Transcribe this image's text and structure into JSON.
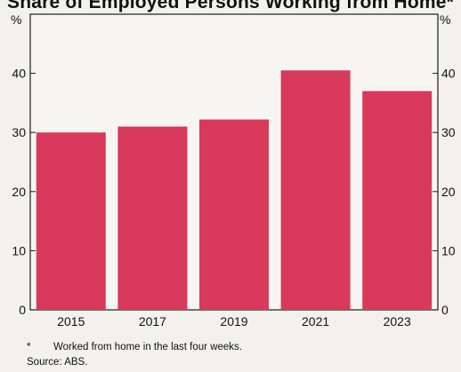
{
  "chart_data": {
    "type": "bar",
    "title": "Share of Employed Persons Working from Home*",
    "categories": [
      "2015",
      "2017",
      "2019",
      "2021",
      "2023"
    ],
    "values": [
      30,
      31,
      32.2,
      40.5,
      37
    ],
    "ylabel_left": "%",
    "ylabel_right": "%",
    "ylim": [
      0,
      50
    ],
    "yticks": [
      "0",
      "10",
      "20",
      "30",
      "40"
    ],
    "grid": false,
    "bar_color": "#d9395a"
  },
  "footnote": {
    "marker": "*",
    "text": "Worked from home in the last four weeks."
  },
  "source": "Source:   ABS."
}
